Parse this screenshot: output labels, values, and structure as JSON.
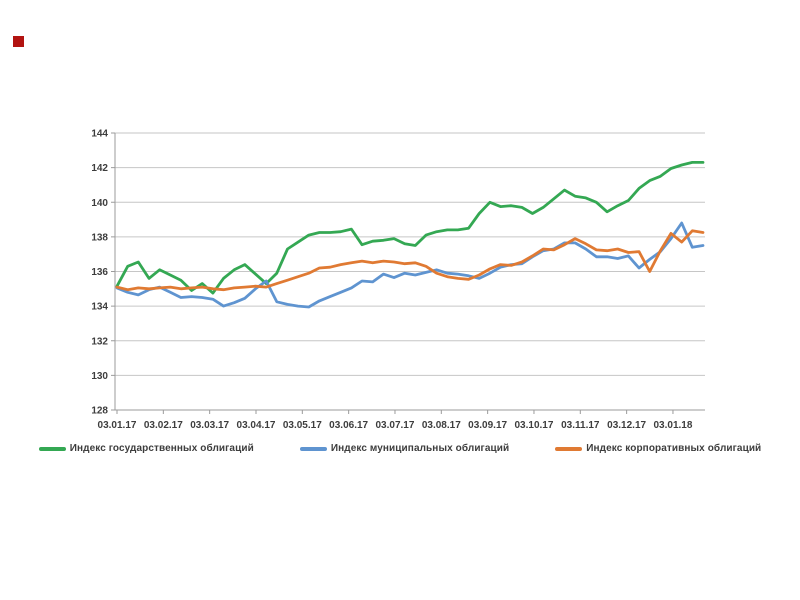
{
  "page": {
    "background": "#ffffff"
  },
  "decorations": {
    "red_marker_color": "#b21311"
  },
  "chart_data": {
    "type": "line",
    "title": "",
    "xlabel": "",
    "ylabel": "",
    "ylim": [
      128,
      144
    ],
    "y_ticks": [
      128,
      130,
      132,
      134,
      136,
      138,
      140,
      142,
      144
    ],
    "x_tick_labels": [
      "03.01.17",
      "03.02.17",
      "03.03.17",
      "03.04.17",
      "03.05.17",
      "03.06.17",
      "03.07.17",
      "03.08.17",
      "03.09.17",
      "03.10.17",
      "03.11.17",
      "03.12.17",
      "03.01.18"
    ],
    "grid": true,
    "legend_position": "bottom",
    "grid_color": "#c6c6c6",
    "axis_color": "#9b9b9b",
    "tick_label_color": "#3d3d3d",
    "x": [
      "03.01.17",
      "10.01.17",
      "17.01.17",
      "24.01.17",
      "31.01.17",
      "07.02.17",
      "14.02.17",
      "21.02.17",
      "28.02.17",
      "07.03.17",
      "14.03.17",
      "21.03.17",
      "28.03.17",
      "04.04.17",
      "11.04.17",
      "18.04.17",
      "25.04.17",
      "02.05.17",
      "09.05.17",
      "16.05.17",
      "23.05.17",
      "30.05.17",
      "06.06.17",
      "13.06.17",
      "20.06.17",
      "27.06.17",
      "04.07.17",
      "11.07.17",
      "18.07.17",
      "25.07.17",
      "01.08.17",
      "08.08.17",
      "15.08.17",
      "22.08.17",
      "29.08.17",
      "05.09.17",
      "12.09.17",
      "19.09.17",
      "26.09.17",
      "03.10.17",
      "10.10.17",
      "17.10.17",
      "24.10.17",
      "31.10.17",
      "07.11.17",
      "14.11.17",
      "21.11.17",
      "28.11.17",
      "05.12.17",
      "12.12.17",
      "19.12.17",
      "26.12.17",
      "02.01.18",
      "09.01.18",
      "16.01.18",
      "23.01.18"
    ],
    "series": [
      {
        "name": "Индекс государственных облигаций",
        "color": "#34a853",
        "values": [
          135.15,
          136.3,
          136.55,
          135.6,
          136.1,
          135.8,
          135.5,
          134.9,
          135.3,
          134.75,
          135.6,
          136.1,
          136.4,
          135.85,
          135.3,
          135.9,
          137.3,
          137.7,
          138.1,
          138.25,
          138.25,
          138.3,
          138.45,
          137.55,
          137.75,
          137.8,
          137.9,
          137.6,
          137.5,
          138.1,
          138.3,
          138.4,
          138.4,
          138.5,
          139.35,
          140.0,
          139.75,
          139.8,
          139.7,
          139.35,
          139.7,
          140.2,
          140.7,
          140.35,
          140.25,
          140.0,
          139.45,
          139.8,
          140.1,
          140.8,
          141.25,
          141.5,
          141.95,
          142.15,
          142.3,
          142.3
        ]
      },
      {
        "name": "Индекс муниципальных облигаций",
        "color": "#5f94d0",
        "values": [
          135.05,
          134.8,
          134.65,
          134.95,
          135.1,
          134.8,
          134.5,
          134.55,
          134.5,
          134.4,
          134.0,
          134.2,
          134.45,
          135.0,
          135.45,
          134.25,
          134.1,
          134.0,
          133.95,
          134.3,
          134.55,
          134.8,
          135.05,
          135.45,
          135.4,
          135.85,
          135.65,
          135.9,
          135.8,
          135.95,
          136.1,
          135.9,
          135.85,
          135.75,
          135.6,
          135.9,
          136.25,
          136.4,
          136.45,
          136.85,
          137.2,
          137.3,
          137.65,
          137.65,
          137.3,
          136.85,
          136.85,
          136.75,
          136.9,
          136.2,
          136.7,
          137.15,
          137.9,
          138.8,
          137.4,
          137.5
        ]
      },
      {
        "name": "Индекс корпоративных облигаций",
        "color": "#e07a33",
        "values": [
          135.1,
          134.95,
          135.05,
          135.0,
          135.05,
          135.1,
          135.0,
          135.05,
          135.1,
          135.0,
          134.95,
          135.05,
          135.1,
          135.15,
          135.1,
          135.3,
          135.5,
          135.7,
          135.9,
          136.2,
          136.25,
          136.4,
          136.5,
          136.6,
          136.5,
          136.6,
          136.55,
          136.45,
          136.5,
          136.3,
          135.9,
          135.7,
          135.6,
          135.55,
          135.8,
          136.15,
          136.4,
          136.35,
          136.55,
          136.9,
          137.3,
          137.25,
          137.55,
          137.9,
          137.6,
          137.25,
          137.2,
          137.3,
          137.1,
          137.15,
          136.0,
          137.2,
          138.2,
          137.7,
          138.35,
          138.25
        ]
      }
    ]
  }
}
